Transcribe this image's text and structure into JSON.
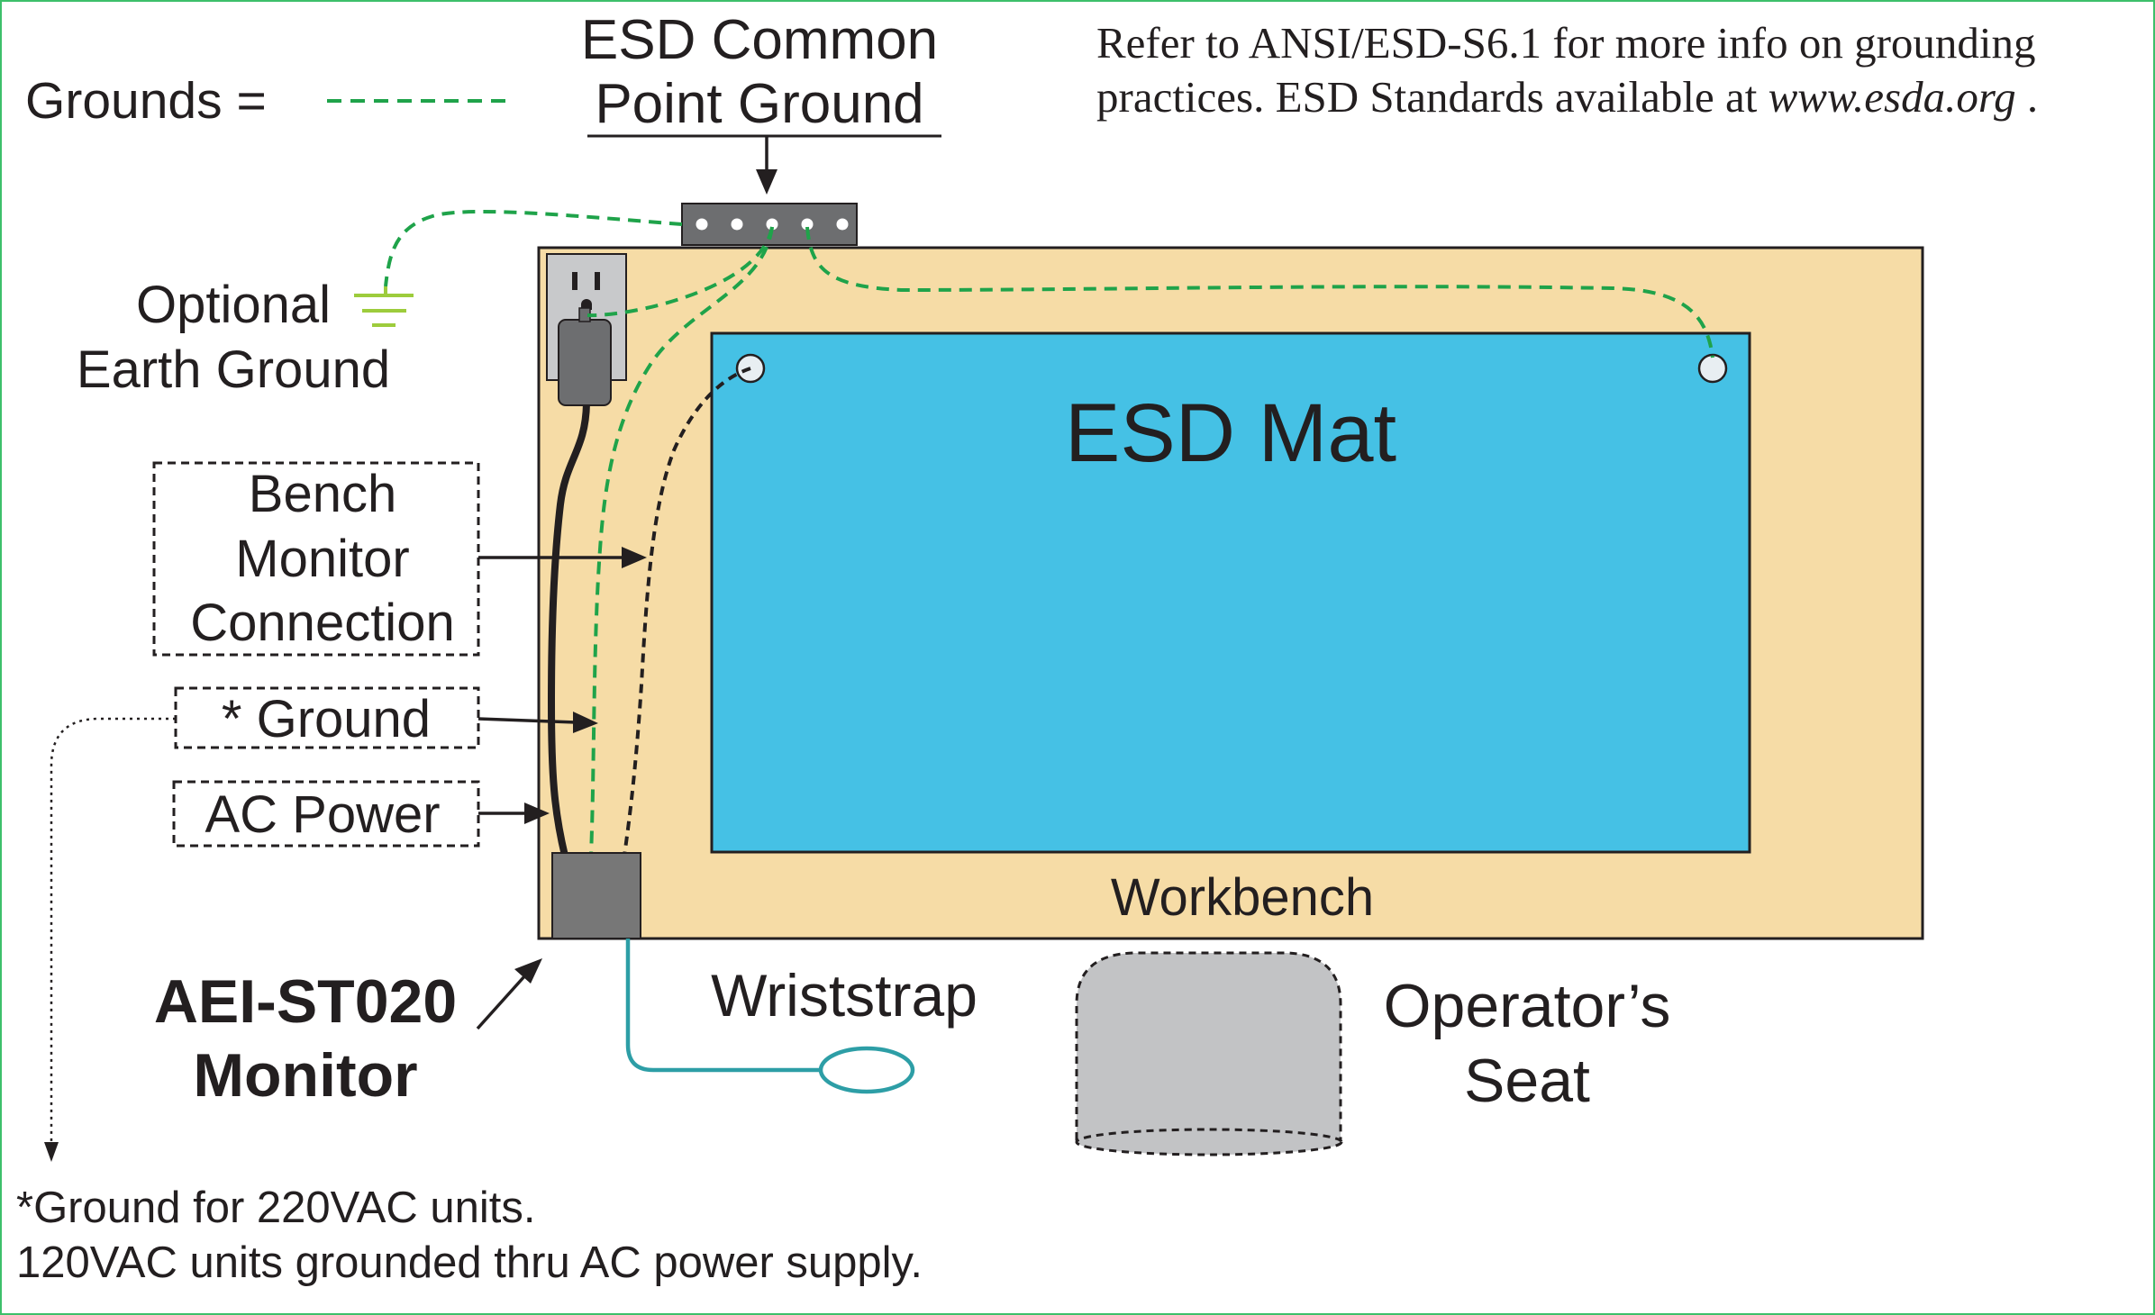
{
  "legend": {
    "grounds_label": "Grounds ="
  },
  "common_point": {
    "line1": "ESD Common",
    "line2": "Point Ground"
  },
  "note": {
    "line1": "Refer to ANSI/ESD-S6.1 for more info on grounding",
    "line2_prefix": "practices.  ESD Standards available at ",
    "line2_link": "www.esda.org",
    "line2_suffix": " ."
  },
  "earth_ground": {
    "line1": "Optional",
    "line2": "Earth Ground"
  },
  "mat": {
    "label": "ESD Mat"
  },
  "workbench": {
    "label": "Workbench"
  },
  "bench_monitor": {
    "line1": "Bench",
    "line2": "Monitor",
    "line3": "Connection"
  },
  "ground_box": {
    "label": "* Ground"
  },
  "ac_power": {
    "label": "AC Power"
  },
  "monitor": {
    "line1": "AEI-ST020",
    "line2": "Monitor"
  },
  "wriststrap": {
    "label": "Wriststrap"
  },
  "seat": {
    "line1": "Operator’s",
    "line2": "Seat"
  },
  "footnote": {
    "line1": "*Ground for 220VAC units.",
    "line2": "120VAC units grounded thru AC power supply."
  },
  "colors": {
    "ground_line": "#1fa34a",
    "workbench": "#f6dca6",
    "mat": "#45c1e5",
    "wriststrap": "#2d9ea6",
    "device": "#777777",
    "seat": "#c2c3c5",
    "border": "#3dbf6a",
    "earth_symbol": "#9dcc3c"
  }
}
